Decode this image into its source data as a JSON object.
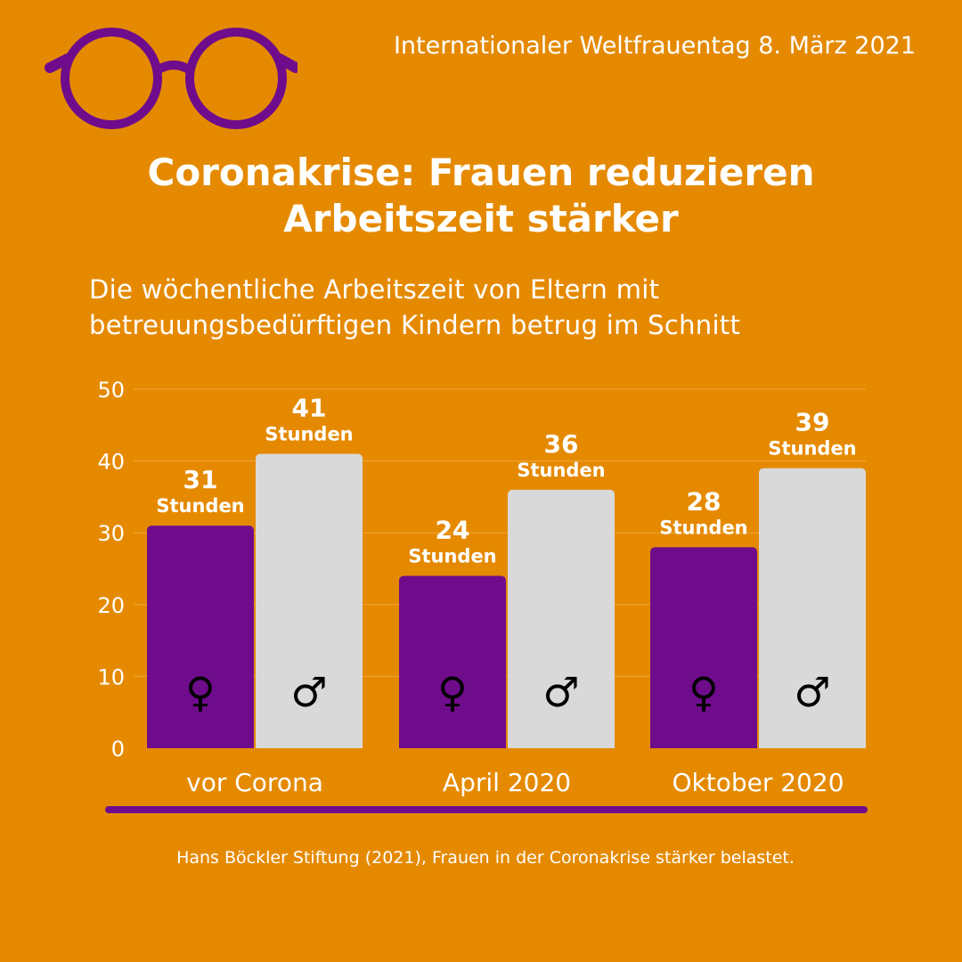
{
  "header": {
    "event": "Internationaler Weltfrauentag 8. März 2021",
    "logo_icon": "glasses-icon"
  },
  "title_lines": [
    "Coronakrise: Frauen reduzieren",
    "Arbeitszeit stärker"
  ],
  "subtitle_lines": [
    "Die wöchentliche Arbeitszeit von Eltern mit",
    "betreuungsbedürftigen Kindern betrug im Schnitt"
  ],
  "source": "Hans Böckler Stiftung (2021), Frauen in der Coronakrise stärker belastet.",
  "colors": {
    "background": "#E58A00",
    "women": "#6F0C8C",
    "men": "#D9D9D9",
    "text": "#FFFFFF",
    "accent_line": "#6F0C8C"
  },
  "chart_data": {
    "type": "bar",
    "categories": [
      "vor Corona",
      "April 2020",
      "Oktober 2020"
    ],
    "series": [
      {
        "symbol": "♀",
        "values": [
          31,
          24,
          28
        ]
      },
      {
        "symbol": "♂",
        "values": [
          41,
          36,
          39
        ]
      }
    ],
    "unit_label": "Stunden",
    "y_ticks": [
      0,
      10,
      20,
      30,
      40,
      50
    ],
    "ylim": [
      0,
      50
    ],
    "grid": true
  }
}
